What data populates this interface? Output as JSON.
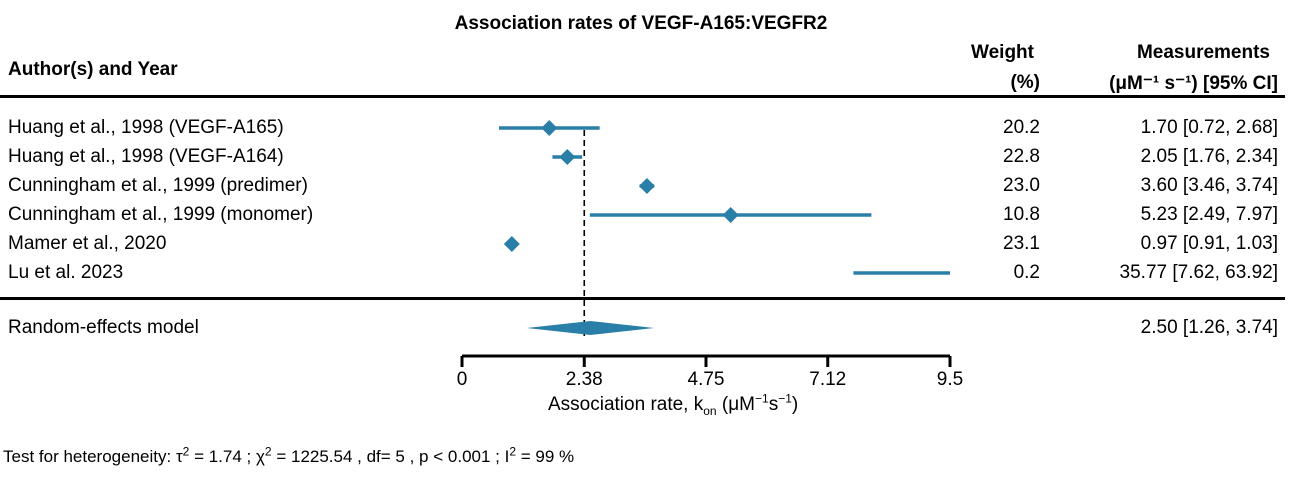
{
  "chart_data": {
    "type": "forest",
    "title": "Association rates of VEGF-A165:VEGFR2",
    "columns": {
      "study": "Author(s) and Year",
      "weight_line1": "Weight",
      "weight_line2": "(%)",
      "measure_line1": "Measurements",
      "measure_unit": "(μM⁻¹ s⁻¹) [95% CI]"
    },
    "studies": [
      {
        "label": "Huang et al., 1998 (VEGF-A165)",
        "estimate": 1.7,
        "lower": 0.72,
        "upper": 2.68,
        "weight": "20.2",
        "ci_text": "1.70 [0.72,  2.68]"
      },
      {
        "label": "Huang et al., 1998 (VEGF-A164)",
        "estimate": 2.05,
        "lower": 1.76,
        "upper": 2.34,
        "weight": "22.8",
        "ci_text": "2.05 [1.76,  2.34]"
      },
      {
        "label": "Cunningham et al., 1999 (predimer)",
        "estimate": 3.6,
        "lower": 3.46,
        "upper": 3.74,
        "weight": "23.0",
        "ci_text": "3.60 [3.46,  3.74]"
      },
      {
        "label": "Cunningham et al., 1999 (monomer)",
        "estimate": 5.23,
        "lower": 2.49,
        "upper": 7.97,
        "weight": "10.8",
        "ci_text": "5.23 [2.49,  7.97]"
      },
      {
        "label": "Mamer et al., 2020",
        "estimate": 0.97,
        "lower": 0.91,
        "upper": 1.03,
        "weight": "23.1",
        "ci_text": "0.97 [0.91,  1.03]"
      },
      {
        "label": "Lu et al. 2023",
        "estimate": 35.77,
        "lower": 7.62,
        "upper": 63.92,
        "weight": "0.2",
        "ci_text": "35.77 [7.62, 63.92]"
      }
    ],
    "summary": {
      "label": "Random-effects model",
      "estimate": 2.5,
      "lower": 1.26,
      "upper": 3.74,
      "ci_text": "2.50 [1.26,  3.74]"
    },
    "reference_line": 2.38,
    "xlim": [
      0,
      9.5
    ],
    "x_ticks": [
      0,
      2.38,
      4.75,
      7.12,
      9.5
    ],
    "x_tick_labels": [
      "0",
      "2.38",
      "4.75",
      "7.12",
      "9.5"
    ],
    "xlabel": {
      "main": "Association rate, k",
      "sub": "on",
      "unit_open": " (μM",
      "sup1": "−1",
      "unit_mid": "s",
      "sup2": "−1",
      "unit_close": ")"
    },
    "heterogeneity": {
      "prefix": "Test for heterogeneity:  ",
      "tau_sym": "τ",
      "tau_sup": "2",
      "tau_val": " = 1.74 ;  ",
      "chi_sym": "χ",
      "chi_sup": "2",
      "chi_val": " = 1225.54 , df= 5 ,  p < 0.001 ;  ",
      "i_sym": "I",
      "i_sup": "2",
      "i_val": " = 99 %"
    },
    "marker_color": "#2a7fa8"
  }
}
